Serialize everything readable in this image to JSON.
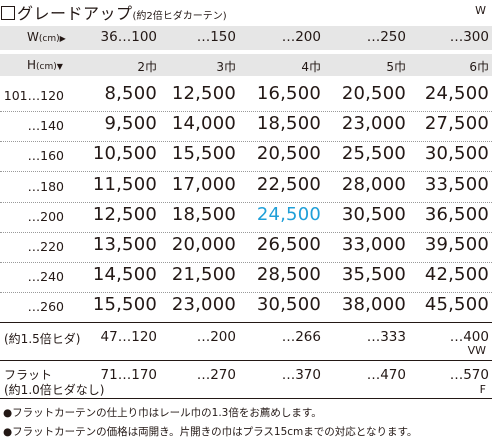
{
  "title": {
    "main": "グレードアップ",
    "sub": "(約2倍ヒダカーテン)",
    "code": "W"
  },
  "header": {
    "w_label": "W",
    "w_unit": "(cm)",
    "w_arrow": "▶",
    "h_label": "H",
    "h_unit": "(cm)",
    "h_arrow": "▼",
    "widths": [
      "36…100",
      "…150",
      "…200",
      "…250",
      "…300"
    ],
    "habs": [
      "2巾",
      "3巾",
      "4巾",
      "5巾",
      "6巾"
    ]
  },
  "rows": [
    {
      "label": "101…120",
      "prices": [
        "8,500",
        "12,500",
        "16,500",
        "20,500",
        "24,500"
      ]
    },
    {
      "label": "…140",
      "prices": [
        "9,500",
        "14,000",
        "18,500",
        "23,000",
        "27,500"
      ]
    },
    {
      "label": "…160",
      "prices": [
        "10,500",
        "15,500",
        "20,500",
        "25,500",
        "30,500"
      ]
    },
    {
      "label": "…180",
      "prices": [
        "11,500",
        "17,000",
        "22,500",
        "28,000",
        "33,500"
      ]
    },
    {
      "label": "…200",
      "prices": [
        "12,500",
        "18,500",
        "24,500",
        "30,500",
        "36,500"
      ]
    },
    {
      "label": "…220",
      "prices": [
        "13,500",
        "20,000",
        "26,500",
        "33,000",
        "39,500"
      ]
    },
    {
      "label": "…240",
      "prices": [
        "14,500",
        "21,500",
        "28,500",
        "35,500",
        "42,500"
      ]
    },
    {
      "label": "…260",
      "prices": [
        "15,500",
        "23,000",
        "30,500",
        "38,000",
        "45,500"
      ]
    }
  ],
  "highlight_color": "#1f9fd8",
  "pleat15": {
    "label": "(約1.5倍ヒダ)",
    "values": [
      "47…120",
      "…200",
      "…266",
      "…333",
      "…400"
    ],
    "code": "VW"
  },
  "flat": {
    "label_line1": "フラット",
    "label_line2": "(約1.0倍ヒダなし)",
    "values": [
      "71…170",
      "…270",
      "…370",
      "…470",
      "…570"
    ],
    "code": "F"
  },
  "notes": [
    "●フラットカーテンの仕上り巾はレール巾の1.3倍をお薦めします。",
    "●フラットカーテンの価格は両開き。片開きの巾はプラス15cmまでの対応となります。"
  ]
}
